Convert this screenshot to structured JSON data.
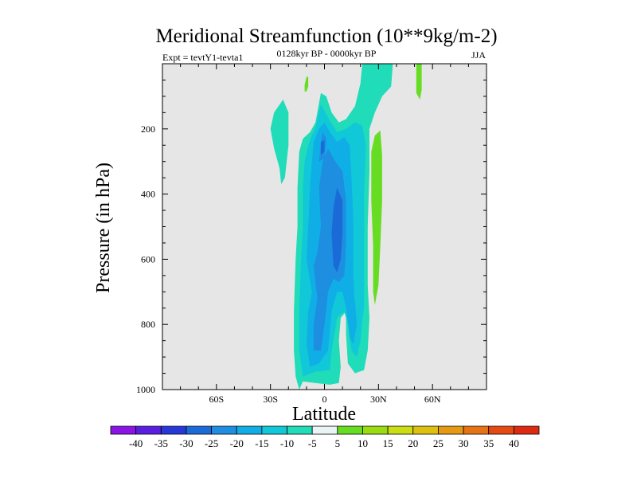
{
  "chart_data": {
    "type": "heatmap",
    "title": "Meridional Streamfunction (10**9kg/m-2)",
    "subtitle": "0128kyr BP - 0000kyr BP",
    "left_label": "Expt = tevtY1-tevta1",
    "right_label": "JJA",
    "xlabel": "Latitude",
    "ylabel": "Pressure (in hPa)",
    "xlim": [
      -90,
      90
    ],
    "ylim": [
      1000,
      0
    ],
    "x_ticks": [
      {
        "value": -60,
        "label": "60S"
      },
      {
        "value": -30,
        "label": "30S"
      },
      {
        "value": 0,
        "label": "0"
      },
      {
        "value": 30,
        "label": "30N"
      },
      {
        "value": 60,
        "label": "60N"
      }
    ],
    "y_ticks": [
      {
        "value": 200,
        "label": "200"
      },
      {
        "value": 400,
        "label": "400"
      },
      {
        "value": 600,
        "label": "600"
      },
      {
        "value": 800,
        "label": "800"
      },
      {
        "value": 1000,
        "label": "1000"
      }
    ],
    "background_color": "#e6e6e6",
    "colorbar": {
      "levels": [
        "-40",
        "-35",
        "-30",
        "-25",
        "-20",
        "-15",
        "-10",
        "-5",
        "5",
        "10",
        "15",
        "20",
        "25",
        "30",
        "35",
        "40"
      ],
      "colors": [
        "#8a14e6",
        "#5a1ee0",
        "#2638d8",
        "#1a6ad8",
        "#1d8ee0",
        "#10aee6",
        "#10c8d8",
        "#20dcb8",
        "#eaf4f4",
        "#66dd22",
        "#99dd11",
        "#ccdd11",
        "#ddc010",
        "#e69a14",
        "#e67414",
        "#e44a12",
        "#dd2a10"
      ]
    },
    "contours": [
      {
        "level": "-5",
        "color": "#20dcb8",
        "points": [
          [
            -14,
            1000
          ],
          [
            -16,
            960
          ],
          [
            -17,
            880
          ],
          [
            -17,
            760
          ],
          [
            -16,
            600
          ],
          [
            -15,
            500
          ],
          [
            -15,
            380
          ],
          [
            -14,
            270
          ],
          [
            -12,
            230
          ],
          [
            -8,
            210
          ],
          [
            -5,
            180
          ],
          [
            -2,
            90
          ],
          [
            1,
            100
          ],
          [
            4,
            150
          ],
          [
            8,
            180
          ],
          [
            12,
            170
          ],
          [
            17,
            130
          ],
          [
            20,
            60
          ],
          [
            21,
            0
          ],
          [
            38,
            0
          ],
          [
            37,
            70
          ],
          [
            32,
            100
          ],
          [
            28,
            150
          ],
          [
            25,
            200
          ],
          [
            25,
            330
          ],
          [
            24,
            500
          ],
          [
            24,
            680
          ],
          [
            25,
            780
          ],
          [
            24,
            880
          ],
          [
            22,
            940
          ],
          [
            17,
            950
          ],
          [
            13,
            920
          ],
          [
            12,
            830
          ],
          [
            12,
            760
          ],
          [
            9,
            780
          ],
          [
            8,
            850
          ],
          [
            9,
            930
          ],
          [
            8,
            980
          ],
          [
            3,
            985
          ],
          [
            -5,
            980
          ],
          [
            -12,
            975
          ]
        ]
      },
      {
        "level": "-5",
        "color": "#20dcb8",
        "points": [
          [
            -30,
            200
          ],
          [
            -28,
            150
          ],
          [
            -23,
            110
          ],
          [
            -20,
            150
          ],
          [
            -20,
            250
          ],
          [
            -22,
            350
          ],
          [
            -24,
            370
          ],
          [
            -25,
            320
          ],
          [
            -28,
            260
          ]
        ]
      },
      {
        "level": "-10",
        "color": "#10c8d8",
        "points": [
          [
            -12,
            960
          ],
          [
            -14,
            880
          ],
          [
            -14,
            760
          ],
          [
            -13,
            600
          ],
          [
            -12,
            500
          ],
          [
            -12,
            380
          ],
          [
            -11,
            300
          ],
          [
            -9,
            250
          ],
          [
            -7,
            220
          ],
          [
            -5,
            195
          ],
          [
            -2,
            125
          ],
          [
            3,
            175
          ],
          [
            7,
            210
          ],
          [
            12,
            200
          ],
          [
            17,
            180
          ],
          [
            21,
            190
          ],
          [
            23,
            250
          ],
          [
            22,
            400
          ],
          [
            22,
            600
          ],
          [
            22,
            740
          ],
          [
            20,
            850
          ],
          [
            18,
            900
          ],
          [
            15,
            880
          ],
          [
            13,
            800
          ],
          [
            11,
            760
          ],
          [
            7,
            780
          ],
          [
            4,
            880
          ],
          [
            3,
            940
          ],
          [
            -5,
            945
          ]
        ]
      },
      {
        "level": "-15",
        "color": "#10aee6",
        "points": [
          [
            -8,
            930
          ],
          [
            -10,
            860
          ],
          [
            -9,
            760
          ],
          [
            -7,
            700
          ],
          [
            -10,
            600
          ],
          [
            -9,
            500
          ],
          [
            -8,
            380
          ],
          [
            -7,
            300
          ],
          [
            -6,
            240
          ],
          [
            -3,
            200
          ],
          [
            0,
            180
          ],
          [
            3,
            210
          ],
          [
            7,
            240
          ],
          [
            11,
            225
          ],
          [
            14,
            250
          ],
          [
            15,
            350
          ],
          [
            16,
            480
          ],
          [
            16,
            650
          ],
          [
            17,
            760
          ],
          [
            16,
            840
          ],
          [
            14,
            830
          ],
          [
            12,
            750
          ],
          [
            10,
            700
          ],
          [
            7,
            700
          ],
          [
            4,
            760
          ],
          [
            2,
            880
          ],
          [
            -3,
            920
          ]
        ]
      },
      {
        "level": "-15",
        "color": "#10aee6",
        "points": [
          [
            13,
            780
          ],
          [
            14,
            720
          ],
          [
            17,
            730
          ],
          [
            18,
            800
          ],
          [
            16,
            860
          ],
          [
            14,
            840
          ]
        ]
      },
      {
        "level": "-20",
        "color": "#1d8ee0",
        "points": [
          [
            -6,
            880
          ],
          [
            -6,
            800
          ],
          [
            -4,
            720
          ],
          [
            -6,
            620
          ],
          [
            -4,
            580
          ],
          [
            -2,
            500
          ],
          [
            -3,
            380
          ],
          [
            -1,
            300
          ],
          [
            2,
            260
          ],
          [
            6,
            300
          ],
          [
            10,
            330
          ],
          [
            12,
            420
          ],
          [
            12,
            560
          ],
          [
            11,
            650
          ],
          [
            8,
            670
          ],
          [
            5,
            660
          ],
          [
            2,
            700
          ],
          [
            0,
            800
          ],
          [
            -2,
            880
          ]
        ]
      },
      {
        "level": "-20",
        "color": "#1d8ee0",
        "points": [
          [
            -3,
            300
          ],
          [
            -2,
            240
          ],
          [
            -1,
            210
          ],
          [
            1,
            230
          ],
          [
            0,
            290
          ]
        ]
      },
      {
        "level": "-25",
        "color": "#1a6ad8",
        "points": [
          [
            5,
            620
          ],
          [
            4,
            520
          ],
          [
            5,
            440
          ],
          [
            7,
            380
          ],
          [
            10,
            420
          ],
          [
            10,
            520
          ],
          [
            9,
            600
          ],
          [
            7,
            640
          ]
        ]
      },
      {
        "level": "-25",
        "color": "#1a6ad8",
        "points": [
          [
            -2,
            280
          ],
          [
            -2,
            240
          ],
          [
            0,
            235
          ],
          [
            0,
            270
          ]
        ]
      },
      {
        "level": "5",
        "color": "#66dd22",
        "points": [
          [
            26,
            270
          ],
          [
            28,
            220
          ],
          [
            31,
            205
          ],
          [
            32,
            280
          ],
          [
            32,
            420
          ],
          [
            31,
            560
          ],
          [
            30,
            680
          ],
          [
            28,
            740
          ],
          [
            27,
            700
          ],
          [
            27,
            560
          ],
          [
            26,
            420
          ]
        ]
      },
      {
        "level": "5",
        "color": "#66dd22",
        "points": [
          [
            51,
            30
          ],
          [
            51,
            0
          ],
          [
            54,
            0
          ],
          [
            54,
            80
          ],
          [
            53,
            110
          ],
          [
            51,
            90
          ]
        ]
      },
      {
        "level": "5",
        "color": "#66dd22",
        "points": [
          [
            -11,
            65
          ],
          [
            -10,
            40
          ],
          [
            -9,
            40
          ],
          [
            -9,
            70
          ],
          [
            -10,
            85
          ],
          [
            -11,
            85
          ]
        ]
      }
    ]
  }
}
